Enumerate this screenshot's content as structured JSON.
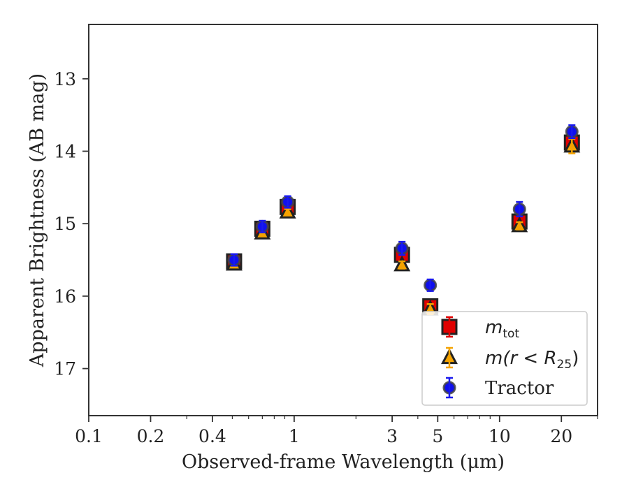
{
  "chart_data": {
    "type": "scatter",
    "xlabel": "Observed-frame Wavelength (μm)",
    "ylabel": "Apparent Brightness (AB mag)",
    "xscale": "log",
    "xlim": [
      0.1,
      30
    ],
    "ylim": [
      17.65,
      12.25
    ],
    "y_inverted": true,
    "xticks": [
      {
        "value": 0.1,
        "label": "0.1"
      },
      {
        "value": 0.2,
        "label": "0.2"
      },
      {
        "value": 0.4,
        "label": "0.4"
      },
      {
        "value": 1,
        "label": "1"
      },
      {
        "value": 3,
        "label": "3"
      },
      {
        "value": 5,
        "label": "5"
      },
      {
        "value": 10,
        "label": "10"
      },
      {
        "value": 20,
        "label": "20"
      }
    ],
    "yticks": [
      {
        "value": 13,
        "label": "13"
      },
      {
        "value": 14,
        "label": "14"
      },
      {
        "value": 15,
        "label": "15"
      },
      {
        "value": 16,
        "label": "16"
      },
      {
        "value": 17,
        "label": "17"
      }
    ],
    "grid": false,
    "legend_position": "lower-right",
    "series": [
      {
        "key": "mtot",
        "legend_main": "m",
        "legend_sub": "tot",
        "marker": "square",
        "color": "#e00000",
        "edge": "#222222",
        "errcolor": "#e00000",
        "x": [
          0.51,
          0.7,
          0.93,
          3.35,
          4.6,
          12.5,
          22.5
        ],
        "y": [
          15.52,
          15.07,
          14.77,
          15.43,
          16.14,
          14.97,
          13.88
        ],
        "err": [
          0.04,
          0.04,
          0.04,
          0.05,
          0.05,
          0.05,
          0.06
        ]
      },
      {
        "key": "mr25",
        "legend_main": "m(r < R",
        "legend_sub": "25",
        "legend_tail": ")",
        "marker": "triangle",
        "color": "#f5a300",
        "edge": "#222222",
        "errcolor": "#f5a300",
        "x": [
          0.51,
          0.7,
          0.93,
          3.35,
          4.6,
          12.5,
          22.5
        ],
        "y": [
          15.56,
          15.13,
          14.84,
          15.57,
          16.18,
          15.03,
          13.93
        ],
        "err": [
          0.04,
          0.04,
          0.04,
          0.05,
          0.07,
          0.05,
          0.1
        ]
      },
      {
        "key": "tractor",
        "legend_main": "Tractor",
        "marker": "circle",
        "color": "#1010ee",
        "edge": "#444444",
        "errcolor": "#1a1aee",
        "x": [
          0.51,
          0.7,
          0.93,
          3.35,
          4.6,
          12.5,
          22.5
        ],
        "y": [
          15.5,
          15.04,
          14.7,
          15.34,
          15.85,
          14.8,
          13.73
        ],
        "err": [
          0.08,
          0.08,
          0.08,
          0.09,
          0.08,
          0.1,
          0.09
        ]
      }
    ]
  }
}
